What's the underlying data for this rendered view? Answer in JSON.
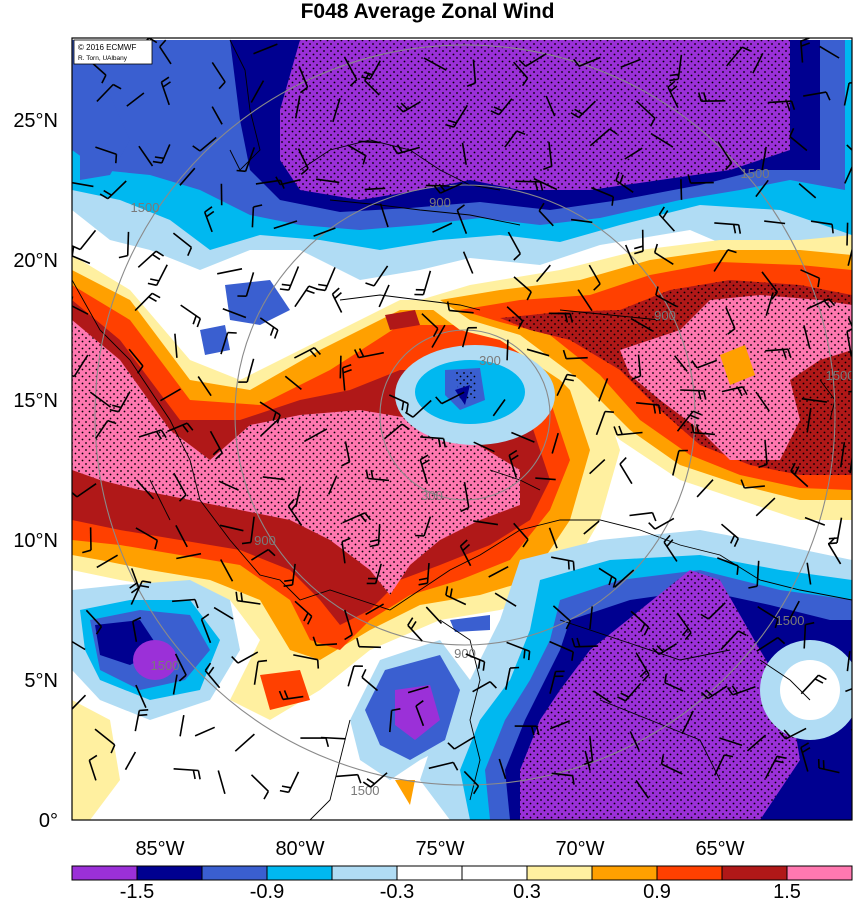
{
  "title": "F048 Average Zonal Wind",
  "credit": {
    "line1": "© 2016 ECMWF",
    "line2": "R. Torn, UAlbany"
  },
  "map": {
    "lon_range": [
      -88,
      -60
    ],
    "lat_range": [
      0,
      28
    ],
    "lat_ticks": [
      "0°",
      "5°N",
      "10°N",
      "15°N",
      "20°N",
      "25°N"
    ],
    "lon_ticks": [
      "85°W",
      "80°W",
      "75°W",
      "70°W",
      "65°W"
    ],
    "range_ring_labels": [
      "300",
      "300",
      "900",
      "900",
      "900",
      "900",
      "1500",
      "1500",
      "1500",
      "1500",
      "1500",
      "1500"
    ]
  },
  "colorbar": {
    "colors": [
      "#9b30d8",
      "#000090",
      "#3a5fd0",
      "#00b8f0",
      "#b0dcf4",
      "#ffffff",
      "#ffffff",
      "#fff0a0",
      "#ffa000",
      "#ff4000",
      "#b01818",
      "#ff78b0"
    ],
    "labels": [
      "-1.5",
      "-0.9",
      "-0.3",
      "0.3",
      "0.9",
      "1.5"
    ]
  }
}
